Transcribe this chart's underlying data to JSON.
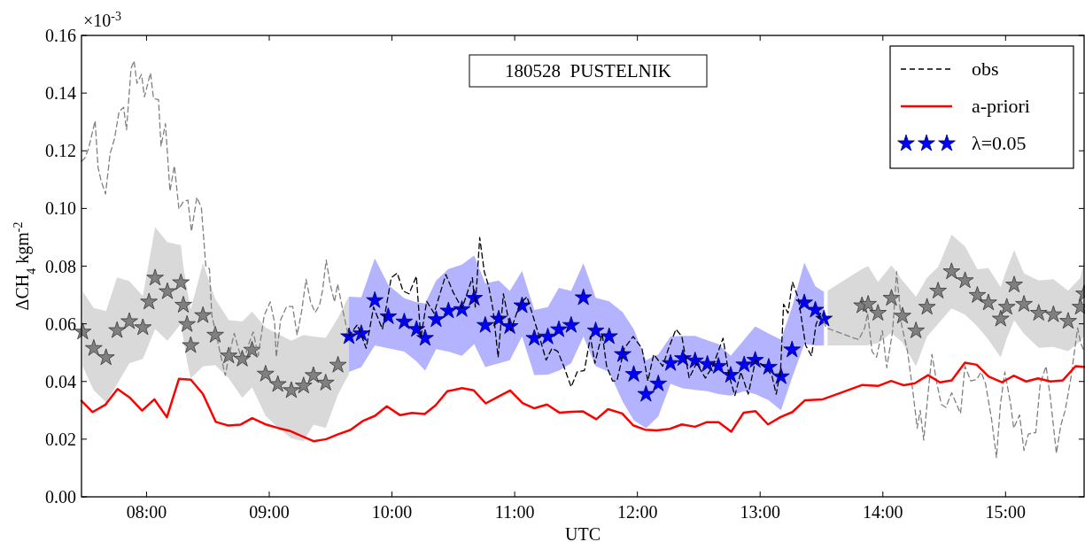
{
  "chart_data": {
    "type": "line",
    "title": "180528  PUSTELNIK",
    "xlabel": "UTC",
    "ylabel": "ΔCH$_{4}$ kgm$^{-2}$",
    "annotations": [
      "×10$^{-3}$"
    ],
    "xlim": [
      7.47,
      15.64
    ],
    "ylim": [
      0,
      0.16
    ],
    "xticks": [
      {
        "value": 8,
        "label": "08:00"
      },
      {
        "value": 9,
        "label": "09:00"
      },
      {
        "value": 10,
        "label": "10:00"
      },
      {
        "value": 11,
        "label": "11:00"
      },
      {
        "value": 12,
        "label": "12:00"
      },
      {
        "value": 13,
        "label": "13:00"
      },
      {
        "value": 14,
        "label": "14:00"
      },
      {
        "value": 15,
        "label": "15:00"
      }
    ],
    "yticks": [
      {
        "value": 0,
        "label": "0.00"
      },
      {
        "value": 0.02,
        "label": "0.02"
      },
      {
        "value": 0.04,
        "label": "0.04"
      },
      {
        "value": 0.06,
        "label": "0.06"
      },
      {
        "value": 0.08,
        "label": "0.08"
      },
      {
        "value": 0.1,
        "label": "0.10"
      },
      {
        "value": 0.12,
        "label": "0.12"
      },
      {
        "value": 0.14,
        "label": "0.14"
      },
      {
        "value": 0.16,
        "label": "0.16"
      }
    ],
    "legend": "top right",
    "series": [
      {
        "type": "scatter",
        "marker": "star",
        "color": "#808080",
        "x": [
          7.48,
          7.57,
          7.67,
          7.76,
          7.86,
          7.97,
          8.02,
          8.07,
          8.17,
          8.28,
          8.3,
          8.33,
          8.36,
          8.46,
          8.56,
          8.67,
          8.78,
          8.86,
          8.97,
          9.07,
          9.18,
          9.28,
          9.36,
          9.46,
          9.56,
          9.65
        ],
        "values": [
          0.0572,
          0.0515,
          0.0483,
          0.0577,
          0.0608,
          0.0587,
          0.0676,
          0.0759,
          0.0712,
          0.0743,
          0.0665,
          0.0598,
          0.0525,
          0.0629,
          0.0561,
          0.0489,
          0.0478,
          0.0509,
          0.0426,
          0.039,
          0.0369,
          0.0385,
          0.0421,
          0.0395,
          0.0457,
          null
        ],
        "upper": [
          0.0712,
          0.0655,
          0.0644,
          0.0761,
          0.0748,
          0.0696,
          0.0815,
          0.0935,
          0.0883,
          0.0873,
          0.08,
          0.072,
          0.065,
          0.0811,
          0.0686,
          0.0613,
          0.0608,
          0.0642,
          0.0587,
          0.0565,
          0.0541,
          0.0561,
          0.0556,
          0.0551,
          0.062,
          0.0696
        ],
        "lower": [
          0.0452,
          0.0369,
          0.0328,
          0.039,
          0.0463,
          0.0478,
          0.053,
          0.0582,
          0.0541,
          0.06,
          0.055,
          0.047,
          0.0411,
          0.0452,
          0.0457,
          0.0411,
          0.0343,
          0.038,
          0.0281,
          0.024,
          0.0203,
          0.0193,
          0.025,
          0.0239,
          0.0354,
          0.0426
        ]
      },
      {
        "type": "scatter",
        "marker": "star",
        "color": "#808080",
        "x": [
          13.55,
          13.83,
          13.88,
          13.96,
          14.07,
          14.16,
          14.27,
          14.36,
          14.45,
          14.56,
          14.67,
          14.77,
          14.86,
          14.96,
          15.01,
          15.07,
          15.15,
          15.27,
          15.39,
          15.51,
          15.61,
          15.64
        ],
        "values": [
          null,
          0.0663,
          0.0668,
          0.0637,
          0.0689,
          0.0627,
          0.0576,
          0.0658,
          0.0714,
          0.0781,
          0.075,
          0.0699,
          0.0673,
          0.0617,
          0.0658,
          0.0735,
          0.0668,
          0.0637,
          0.0632,
          0.0609,
          0.0658,
          0.0704
        ],
        "lower": [
          0.0525,
          0.0525,
          0.0526,
          0.0533,
          0.0568,
          0.0535,
          0.0453,
          0.0556,
          0.06,
          0.0653,
          0.0632,
          0.0591,
          0.0545,
          0.0484,
          0.055,
          0.0612,
          0.0565,
          0.0517,
          0.052,
          0.0505,
          0.054,
          0.0556
        ],
        "upper": [
          0.0715,
          0.079,
          0.08,
          0.0745,
          0.0803,
          0.075,
          0.0694,
          0.076,
          0.0797,
          0.0909,
          0.0868,
          0.0789,
          0.0793,
          0.0728,
          0.079,
          0.0855,
          0.0775,
          0.075,
          0.0755,
          0.0715,
          0.076,
          0.0817
        ]
      },
      {
        "type": "line",
        "line_style": "dashed",
        "color": "#808080",
        "x": [
          7.47,
          7.496,
          7.527,
          7.581,
          7.605,
          7.63,
          7.666,
          7.703,
          7.739,
          7.776,
          7.813,
          7.837,
          7.874,
          7.898,
          7.922,
          7.959,
          7.983,
          8.032,
          8.057,
          8.098,
          8.118,
          8.154,
          8.191,
          8.227,
          8.264,
          8.3,
          8.337,
          8.366,
          8.41,
          8.447,
          8.483,
          8.513,
          8.532,
          8.569,
          8.605,
          8.642,
          8.666,
          8.715,
          8.752,
          8.788,
          8.825,
          8.869,
          8.91,
          8.959,
          9.008,
          9.044,
          9.057,
          9.093,
          9.142,
          9.191,
          9.227,
          9.264,
          9.3,
          9.337,
          9.374,
          9.41,
          9.435,
          9.464,
          9.496,
          9.532,
          9.557,
          9.606,
          9.646
        ],
        "values": [
          0.1164,
          0.1174,
          0.1207,
          0.1304,
          0.1143,
          0.1096,
          0.105,
          0.119,
          0.1242,
          0.1335,
          0.1351,
          0.1273,
          0.1486,
          0.1512,
          0.1434,
          0.1465,
          0.1387,
          0.147,
          0.1382,
          0.1377,
          0.1216,
          0.1294,
          0.106,
          0.1148,
          0.0998,
          0.1024,
          0.1029,
          0.092,
          0.1039,
          0.1003,
          0.08,
          0.079,
          0.0629,
          0.0561,
          0.0489,
          0.0421,
          0.0478,
          0.0567,
          0.0509,
          0.0463,
          0.052,
          0.0572,
          0.0489,
          0.0629,
          0.0676,
          0.0603,
          0.0484,
          0.0614,
          0.066,
          0.066,
          0.0561,
          0.0644,
          0.0754,
          0.0676,
          0.0639,
          0.0665,
          0.0717,
          0.0821,
          0.0738,
          0.0676,
          0.0738,
          0.0634,
          0.0556
        ]
      },
      {
        "type": "line",
        "line_style": "dashed",
        "color": "#808080",
        "x": [
          13.491,
          13.539,
          13.768,
          13.804,
          13.852,
          13.876,
          13.912,
          13.948,
          13.996,
          14.032,
          14.08,
          14.112,
          14.153,
          14.201,
          14.249,
          14.28,
          14.304,
          14.333,
          14.362,
          14.4,
          14.441,
          14.477,
          14.513,
          14.561,
          14.633,
          14.669,
          14.717,
          14.765,
          14.801,
          14.837,
          14.886,
          14.926,
          14.958,
          14.994,
          15.042,
          15.066,
          15.114,
          15.15,
          15.186,
          15.246,
          15.282,
          15.33,
          15.366,
          15.414,
          15.45,
          15.486,
          15.534,
          15.587,
          15.611,
          15.64
        ],
        "values": [
          0.0637,
          0.0586,
          0.055,
          0.0545,
          0.0586,
          0.0637,
          0.0504,
          0.0484,
          0.0576,
          0.0448,
          0.0576,
          0.0781,
          0.0596,
          0.0504,
          0.0351,
          0.0238,
          0.03,
          0.0197,
          0.033,
          0.0494,
          0.0392,
          0.032,
          0.031,
          0.0361,
          0.0289,
          0.0453,
          0.0402,
          0.0407,
          0.0433,
          0.0392,
          0.0269,
          0.0136,
          0.032,
          0.0433,
          0.032,
          0.0238,
          0.0284,
          0.0161,
          0.0218,
          0.0223,
          0.0392,
          0.0453,
          0.034,
          0.0151,
          0.0248,
          0.03,
          0.0417,
          0.0586,
          0.0535,
          0.0504
        ]
      },
      {
        "name": "obs",
        "type": "line",
        "line_style": "dashed",
        "color": "#000000",
        "x": [
          9.646,
          9.718,
          9.79,
          9.85,
          9.922,
          9.994,
          10.043,
          10.09,
          10.139,
          10.199,
          10.235,
          10.283,
          10.343,
          10.439,
          10.499,
          10.571,
          10.655,
          10.679,
          10.715,
          10.752,
          10.788,
          10.824,
          10.865,
          10.908,
          10.968,
          11.04,
          11.1,
          11.16,
          11.208,
          11.256,
          11.304,
          11.352,
          11.4,
          11.46,
          11.509,
          11.568,
          11.617,
          11.653,
          11.713,
          11.749,
          11.797,
          11.833,
          11.893,
          11.965,
          12.037,
          12.085,
          12.133,
          12.206,
          12.254,
          12.314,
          12.362,
          12.422,
          12.482,
          12.554,
          12.614,
          12.698,
          12.746,
          12.794,
          12.843,
          12.903,
          12.963,
          13.035,
          13.095,
          13.131,
          13.167,
          13.191,
          13.227,
          13.263,
          13.311,
          13.371,
          13.419,
          13.455,
          13.491
        ],
        "values": [
          0.0556,
          0.0597,
          0.0515,
          0.0658,
          0.0581,
          0.076,
          0.0776,
          0.0714,
          0.0704,
          0.0765,
          0.055,
          0.0678,
          0.0637,
          0.0771,
          0.0709,
          0.0653,
          0.076,
          0.0658,
          0.0899,
          0.0781,
          0.073,
          0.0648,
          0.0484,
          0.0704,
          0.0576,
          0.0668,
          0.0694,
          0.0612,
          0.0545,
          0.0474,
          0.0515,
          0.0504,
          0.0453,
          0.0381,
          0.0433,
          0.0438,
          0.0556,
          0.0463,
          0.0566,
          0.0453,
          0.0402,
          0.0402,
          0.0515,
          0.0556,
          0.0515,
          0.0402,
          0.0494,
          0.0453,
          0.0515,
          0.0581,
          0.0556,
          0.0412,
          0.0463,
          0.0412,
          0.0453,
          0.055,
          0.0422,
          0.0351,
          0.0433,
          0.0356,
          0.0474,
          0.0453,
          0.0422,
          0.0356,
          0.0443,
          0.0668,
          0.0637,
          0.0745,
          0.0689,
          0.0525,
          0.0489,
          0.0597,
          0.0637
        ]
      },
      {
        "name": "a-priori",
        "type": "line",
        "line_style": "solid",
        "color": "#ff0000",
        "x": [
          7.47,
          7.561,
          7.666,
          7.764,
          7.861,
          7.964,
          8.064,
          8.166,
          8.264,
          8.361,
          8.459,
          8.564,
          8.666,
          8.764,
          8.861,
          8.966,
          9.069,
          9.166,
          9.264,
          9.361,
          9.464,
          9.561,
          9.661,
          9.766,
          9.862,
          9.958,
          10.067,
          10.163,
          10.266,
          10.355,
          10.451,
          10.571,
          10.667,
          10.764,
          10.86,
          10.963,
          11.064,
          11.16,
          11.263,
          11.364,
          11.46,
          11.557,
          11.665,
          11.761,
          11.876,
          11.965,
          12.061,
          12.158,
          12.266,
          12.362,
          12.47,
          12.566,
          12.662,
          12.765,
          12.866,
          12.963,
          13.064,
          13.167,
          13.263,
          13.366,
          13.51,
          13.66,
          13.833,
          13.965,
          14.068,
          14.169,
          14.261,
          14.369,
          14.465,
          14.561,
          14.669,
          14.765,
          14.862,
          14.97,
          15.066,
          15.167,
          15.265,
          15.366,
          15.467,
          15.57,
          15.64
        ],
        "values": [
          0.0333,
          0.0294,
          0.032,
          0.0374,
          0.0345,
          0.0299,
          0.0338,
          0.0276,
          0.0409,
          0.0406,
          0.0357,
          0.026,
          0.0247,
          0.025,
          0.0273,
          0.0252,
          0.0239,
          0.0229,
          0.0211,
          0.0193,
          0.02,
          0.0217,
          0.0232,
          0.0264,
          0.0281,
          0.0314,
          0.0283,
          0.0291,
          0.0287,
          0.0317,
          0.0366,
          0.0377,
          0.0369,
          0.0324,
          0.0346,
          0.0369,
          0.0325,
          0.0307,
          0.032,
          0.0292,
          0.0295,
          0.0296,
          0.0269,
          0.0304,
          0.0289,
          0.0248,
          0.0233,
          0.023,
          0.0236,
          0.0251,
          0.0243,
          0.0259,
          0.0259,
          0.0226,
          0.0292,
          0.0297,
          0.0251,
          0.0277,
          0.0294,
          0.0335,
          0.0338,
          0.0361,
          0.0388,
          0.0385,
          0.0402,
          0.0387,
          0.0394,
          0.0422,
          0.0397,
          0.0404,
          0.0465,
          0.0458,
          0.0417,
          0.0397,
          0.042,
          0.04,
          0.0411,
          0.04,
          0.0404,
          0.0453,
          0.0451
        ]
      },
      {
        "name": "λ=0.05",
        "type": "scatter",
        "marker": "star",
        "color": "#0000ff",
        "x": [
          9.65,
          9.75,
          9.86,
          9.97,
          10.1,
          10.2,
          10.27,
          10.36,
          10.46,
          10.57,
          10.67,
          10.76,
          10.87,
          10.96,
          11.06,
          11.16,
          11.27,
          11.36,
          11.46,
          11.56,
          11.66,
          11.77,
          11.88,
          11.97,
          12.07,
          12.17,
          12.27,
          12.37,
          12.47,
          12.57,
          12.66,
          12.76,
          12.87,
          12.96,
          13.07,
          13.17,
          13.26,
          13.36,
          13.45,
          13.52
        ],
        "values": [
          0.0556,
          0.0566,
          0.0681,
          0.0625,
          0.0607,
          0.0581,
          0.055,
          0.0615,
          0.0645,
          0.065,
          0.0689,
          0.0595,
          0.0617,
          0.0591,
          0.0663,
          0.055,
          0.0555,
          0.058,
          0.0595,
          0.0691,
          0.0576,
          0.0556,
          0.0494,
          0.0425,
          0.0356,
          0.0392,
          0.0463,
          0.048,
          0.0472,
          0.046,
          0.0453,
          0.0422,
          0.0458,
          0.0474,
          0.045,
          0.0417,
          0.051,
          0.0673,
          0.0648,
          0.0617
        ],
        "upper": [
          0.0694,
          0.0692,
          0.0827,
          0.0735,
          0.0689,
          0.0675,
          0.067,
          0.075,
          0.079,
          0.0805,
          0.0837,
          0.074,
          0.075,
          0.0714,
          0.0783,
          0.0648,
          0.0658,
          0.0725,
          0.0714,
          0.081,
          0.069,
          0.0678,
          0.064,
          0.0581,
          0.0474,
          0.0494,
          0.0556,
          0.0558,
          0.0558,
          0.0543,
          0.053,
          0.0489,
          0.0545,
          0.0591,
          0.0566,
          0.0545,
          0.0658,
          0.0812,
          0.073,
          0.0711
        ],
        "lower": [
          0.0433,
          0.045,
          0.0525,
          0.0515,
          0.0504,
          0.047,
          0.0438,
          0.0512,
          0.0504,
          0.0489,
          0.053,
          0.045,
          0.0463,
          0.0474,
          0.0556,
          0.0422,
          0.0424,
          0.0438,
          0.0463,
          0.0556,
          0.0453,
          0.0433,
          0.033,
          0.0266,
          0.0238,
          0.0279,
          0.0392,
          0.0376,
          0.0371,
          0.0366,
          0.0356,
          0.0351,
          0.0366,
          0.0356,
          0.0335,
          0.03,
          0.0412,
          0.053,
          0.0524,
          0.0525
        ]
      }
    ]
  }
}
